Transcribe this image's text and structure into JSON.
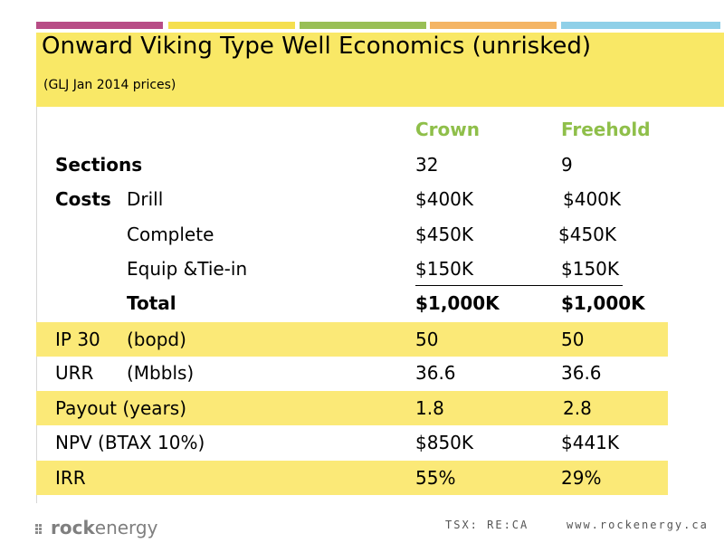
{
  "title": "Onward Viking Type Well Economics (unrisked)",
  "subtitle": "(GLJ Jan 2014 prices)",
  "columns": {
    "crown": "Crown",
    "freehold": "Freehold"
  },
  "rows": {
    "sections": {
      "label": "Sections",
      "crown": "32",
      "freehold": "9"
    },
    "costs_label": "Costs",
    "drill": {
      "label": "Drill",
      "crown": "$400K",
      "freehold": "$400K"
    },
    "complete": {
      "label": "Complete",
      "crown": "$450K",
      "freehold": "$450K"
    },
    "equip": {
      "label": "Equip &Tie-in",
      "crown": "$150K",
      "freehold": "$150K"
    },
    "total": {
      "label": "Total",
      "crown": "$1,000K",
      "freehold": "$1,000K"
    },
    "ip30": {
      "label": "IP 30",
      "unit": "(bopd)",
      "crown": "50",
      "freehold": "50"
    },
    "urr": {
      "label": "URR",
      "unit": "(Mbbls)",
      "crown": "36.6",
      "freehold": "36.6"
    },
    "payout": {
      "label": "Payout (years)",
      "crown": "1.8",
      "freehold": "2.8"
    },
    "npv": {
      "label": "NPV (BTAX 10%)",
      "crown": "$850K",
      "freehold": "$441K"
    },
    "irr": {
      "label": "IRR",
      "crown": "55%",
      "freehold": "29%"
    }
  },
  "footer": {
    "logo_bold": "rock",
    "logo_rest": "energy",
    "ticker": "TSX: RE:CA",
    "website": "www.rockenergy.ca"
  },
  "colors": {
    "header_yellow": "#f9e866",
    "band_yellow": "#fbe977",
    "accent_green": "#8fbf4a"
  }
}
